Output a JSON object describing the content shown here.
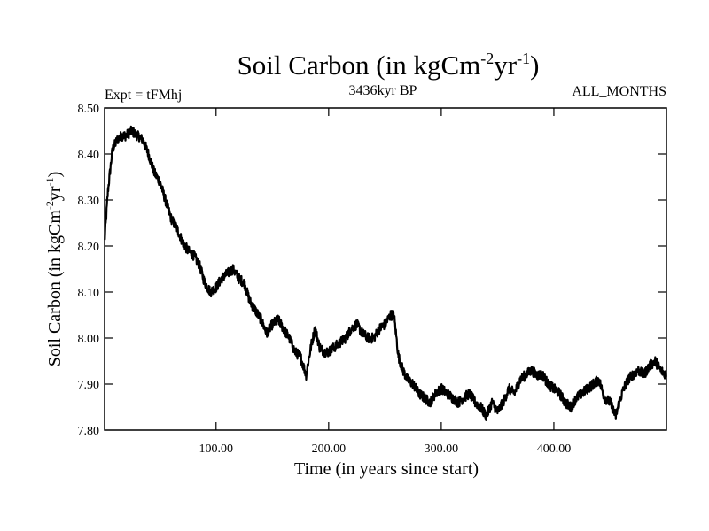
{
  "chart_data": {
    "type": "line",
    "title_main": "Soil Carbon (in kgCm",
    "title_sup1": "-2",
    "title_mid": "yr",
    "title_sup2": "-1",
    "title_end": ")",
    "subtitle_left": "Expt = tFMhj",
    "subtitle_center": "3436kyr BP",
    "subtitle_right": "ALL_MONTHS",
    "xlabel": "Time (in years since start)",
    "ylabel_main": "Soil Carbon (in kgCm",
    "ylabel_sup1": "-2",
    "ylabel_mid": "yr",
    "ylabel_sup2": "-1",
    "ylabel_end": ")",
    "xlim": [
      1,
      500
    ],
    "ylim": [
      7.8,
      8.5
    ],
    "xticks": [
      100,
      200,
      300,
      400
    ],
    "xtick_labels": [
      "100.00",
      "200.00",
      "300.00",
      "400.00"
    ],
    "yticks": [
      7.8,
      7.9,
      8.0,
      8.1,
      8.2,
      8.3,
      8.4,
      8.5
    ],
    "ytick_labels": [
      "7.80",
      "7.90",
      "8.00",
      "8.10",
      "8.20",
      "8.30",
      "8.40",
      "8.50"
    ],
    "line_color": "#000000",
    "series": [
      {
        "name": "Soil Carbon",
        "x": [
          1,
          4,
          8,
          12,
          16,
          20,
          25,
          30,
          35,
          40,
          45,
          50,
          55,
          60,
          65,
          70,
          75,
          80,
          85,
          90,
          95,
          100,
          105,
          110,
          115,
          120,
          125,
          130,
          135,
          140,
          145,
          150,
          155,
          160,
          165,
          170,
          175,
          180,
          182,
          185,
          188,
          192,
          196,
          200,
          205,
          210,
          215,
          220,
          225,
          230,
          235,
          240,
          245,
          250,
          255,
          258,
          262,
          266,
          270,
          275,
          280,
          285,
          290,
          295,
          300,
          305,
          310,
          315,
          320,
          325,
          330,
          335,
          340,
          345,
          350,
          355,
          360,
          365,
          370,
          375,
          380,
          385,
          390,
          395,
          400,
          405,
          410,
          415,
          420,
          425,
          430,
          435,
          440,
          445,
          450,
          455,
          458,
          462,
          466,
          470,
          475,
          480,
          485,
          490,
          495,
          500
        ],
        "y": [
          8.21,
          8.32,
          8.41,
          8.43,
          8.44,
          8.44,
          8.45,
          8.44,
          8.43,
          8.4,
          8.36,
          8.34,
          8.3,
          8.26,
          8.24,
          8.21,
          8.19,
          8.18,
          8.16,
          8.12,
          8.1,
          8.11,
          8.13,
          8.14,
          8.15,
          8.13,
          8.12,
          8.08,
          8.06,
          8.04,
          8.01,
          8.03,
          8.04,
          8.02,
          8.0,
          7.97,
          7.96,
          7.92,
          7.95,
          7.99,
          8.02,
          7.98,
          7.97,
          7.97,
          7.98,
          7.99,
          8.0,
          8.02,
          8.03,
          8.01,
          8.0,
          8.0,
          8.02,
          8.03,
          8.05,
          8.05,
          7.96,
          7.93,
          7.91,
          7.9,
          7.88,
          7.87,
          7.86,
          7.88,
          7.89,
          7.88,
          7.87,
          7.86,
          7.87,
          7.88,
          7.86,
          7.85,
          7.83,
          7.86,
          7.84,
          7.86,
          7.89,
          7.88,
          7.91,
          7.92,
          7.93,
          7.92,
          7.92,
          7.9,
          7.89,
          7.88,
          7.86,
          7.85,
          7.87,
          7.88,
          7.89,
          7.9,
          7.91,
          7.87,
          7.86,
          7.83,
          7.86,
          7.89,
          7.91,
          7.92,
          7.93,
          7.92,
          7.94,
          7.95,
          7.93,
          7.92
        ]
      }
    ]
  }
}
